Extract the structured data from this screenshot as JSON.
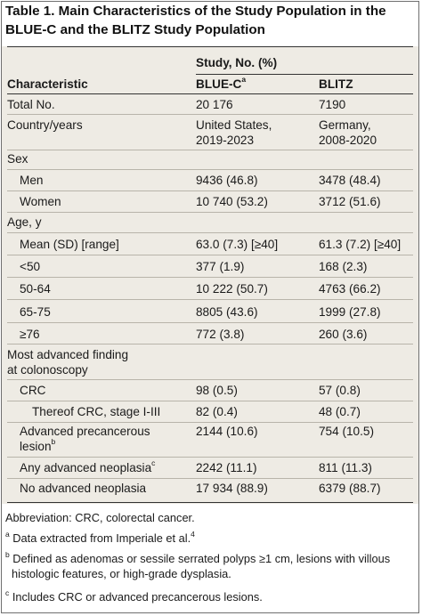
{
  "title": "Table 1. Main Characteristics of the Study Population in the BLUE-C and the BLITZ Study Population",
  "header": {
    "spanner": "Study, No. (%)",
    "characteristic": "Characteristic",
    "col1": "BLUE-C",
    "col1_sup": "a",
    "col2": "BLITZ"
  },
  "rows": [
    {
      "label": "Total No.",
      "v1": "20 176",
      "v2": "7190"
    },
    {
      "label": "Country/years",
      "v1": "United States,",
      "v1b": "2019-2023",
      "v2": "Germany,",
      "v2b": "2008-2020"
    },
    {
      "label": "Sex"
    },
    {
      "label": "Men",
      "v1": "9436 (46.8)",
      "v2": "3478 (48.4)"
    },
    {
      "label": "Women",
      "v1": "10 740 (53.2)",
      "v2": "3712 (51.6)"
    },
    {
      "label": "Age, y"
    },
    {
      "label": "Mean (SD) [range]",
      "v1": "63.0 (7.3) [≥40]",
      "v2": "61.3 (7.2) [≥40]"
    },
    {
      "label": "<50",
      "v1": "377 (1.9)",
      "v2": "168 (2.3)"
    },
    {
      "label": "50-64",
      "v1": "10 222 (50.7)",
      "v2": "4763 (66.2)"
    },
    {
      "label": "65-75",
      "v1": "8805 (43.6)",
      "v2": "1999 (27.8)"
    },
    {
      "label": "≥76",
      "v1": "772 (3.8)",
      "v2": "260 (3.6)"
    },
    {
      "label": "Most advanced finding",
      "label2": "at colonoscopy"
    },
    {
      "label": "CRC",
      "v1": "98 (0.5)",
      "v2": "57 (0.8)"
    },
    {
      "label": "Thereof CRC, stage I-III",
      "v1": "82 (0.4)",
      "v2": "48 (0.7)"
    },
    {
      "label": "Advanced precancerous",
      "label2": "lesion",
      "label2_sup": "b",
      "v1": "2144 (10.6)",
      "v2": "754 (10.5)"
    },
    {
      "label": "Any advanced neoplasia",
      "label_sup": "c",
      "v1": "2242 (11.1)",
      "v2": "811 (11.3)"
    },
    {
      "label": "No advanced neoplasia",
      "v1": "17 934 (88.9)",
      "v2": "6379 (88.7)"
    }
  ],
  "footnotes": {
    "abbreviation": "Abbreviation: CRC, colorectal cancer.",
    "a_mark": "a",
    "a_text": "Data extracted from Imperiale et al.",
    "a_ref": "4",
    "b_mark": "b",
    "b_text1": "Defined as adenomas or sessile serrated polyps ≥1 cm, lesions with villous",
    "b_text2": "histologic features, or high-grade dysplasia.",
    "c_mark": "c",
    "c_text": "Includes CRC or advanced precancerous lesions."
  }
}
